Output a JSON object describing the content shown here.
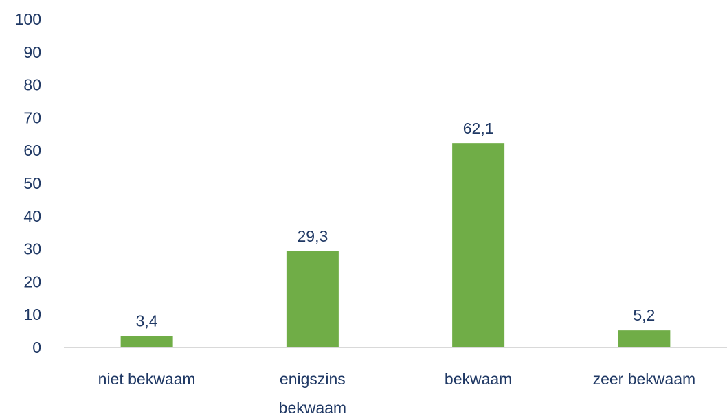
{
  "chart_data": {
    "type": "bar",
    "categories": [
      "niet bekwaam",
      "enigszins bekwaam",
      "bekwaam",
      "zeer bekwaam"
    ],
    "category_label_lines": [
      [
        "niet bekwaam"
      ],
      [
        "enigszins",
        "bekwaam"
      ],
      [
        "bekwaam"
      ],
      [
        "zeer bekwaam"
      ]
    ],
    "values": [
      3.4,
      29.3,
      62.1,
      5.2
    ],
    "data_labels": [
      "3,4",
      "29,3",
      "62,1",
      "5,2"
    ],
    "y_ticks": [
      0,
      10,
      20,
      30,
      40,
      50,
      60,
      70,
      80,
      90,
      100
    ],
    "ylim": [
      0,
      100
    ],
    "grid": false,
    "legend": "none",
    "colors": {
      "bar": "#70ad47",
      "text": "#1f3864",
      "axis_line": "#d9d9d9"
    }
  }
}
